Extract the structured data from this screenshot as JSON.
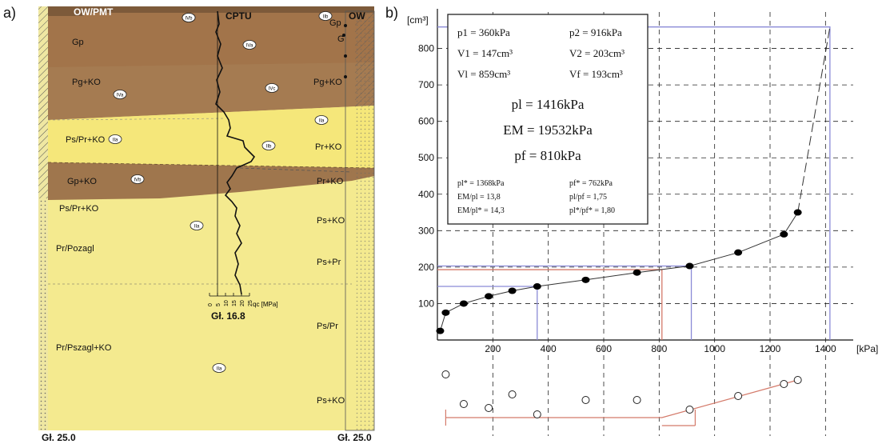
{
  "panel_a": {
    "label": "a)",
    "header_left": "OW/PMT",
    "header_cptu": "CPTU",
    "header_right": "OW",
    "left_layers": [
      {
        "label": "Gp",
        "color": "#a2744a"
      },
      {
        "label": "Pg+KO",
        "color": "#a57b51"
      },
      {
        "label": "Ps/Pr+KO",
        "color": "#f5e77a"
      },
      {
        "label": "Gp+KO",
        "color": "#9f764d"
      },
      {
        "label": "Ps/Pr+KO",
        "color": "#f4e888"
      },
      {
        "label": "Pr/Pozagl",
        "color": "#f2e687"
      },
      {
        "label": "Pr/Pszagl+KO",
        "color": "#f4ea8f"
      }
    ],
    "right_labels": [
      "Gp",
      "G",
      "Pg+KO",
      "Pr+KO",
      "Pr+KO",
      "Ps+KO",
      "Ps+Pr",
      "Ps/Pr",
      "Ps+KO"
    ],
    "bubbles": [
      "IVb",
      "IVa",
      "IVa",
      "IVb",
      "IVc",
      "IIa",
      "IIa",
      "IIb",
      "IVb",
      "IIa",
      "IIb",
      "IIa"
    ],
    "cptu_scale_ticks": [
      "0",
      "5",
      "10",
      "15",
      "20",
      "25"
    ],
    "cptu_scale_unit": "qc [MPa]",
    "cptu_depth": "Gł. 16.8",
    "bottom_left": "Gł. 25.0",
    "bottom_right": "Gł. 25.0"
  },
  "panel_b": {
    "label": "b)"
  },
  "chart_data": [
    {
      "type": "line",
      "xlabel": "[kPa]",
      "ylabel": "[cm³]",
      "xlim": [
        0,
        1500
      ],
      "ylim": [
        0,
        900
      ],
      "x_ticks": [
        200,
        400,
        600,
        800,
        1000,
        1200,
        1400
      ],
      "y_ticks": [
        100,
        200,
        300,
        400,
        500,
        600,
        700,
        800
      ],
      "grid": true,
      "series": [
        {
          "marker": "filled",
          "x": [
            10,
            30,
            95,
            185,
            270,
            360,
            535,
            720,
            910,
            1085,
            1250,
            1300
          ],
          "y": [
            25,
            75,
            100,
            120,
            135,
            147,
            165,
            185,
            203,
            240,
            290,
            350
          ]
        }
      ],
      "extrapolation": {
        "x": [
          1300,
          1416
        ],
        "y": [
          350,
          859
        ]
      },
      "reference_lines": [
        {
          "color": "#8a8ad6",
          "x": 360,
          "y": 147
        },
        {
          "color": "#8a8ad6",
          "x": 916,
          "y": 203
        },
        {
          "color": "#d47a6a",
          "x": 810,
          "y": 193
        },
        {
          "color": "#8a8ad6",
          "x": 1416,
          "y": 859
        }
      ],
      "legend_box": {
        "rows": [
          [
            "p1 = 360kPa",
            "p2 = 916kPa"
          ],
          [
            "V1 = 147cm³",
            "V2 = 203cm³"
          ],
          [
            "Vl = 859cm³",
            "Vf = 193cm³"
          ]
        ],
        "main": [
          "pl = 1416kPa",
          "EM = 19532kPa",
          "pf = 810kPa"
        ],
        "small_rows": [
          [
            "pl* = 1368kPa",
            "pf* = 762kPa"
          ],
          [
            "EM/pl = 13,8",
            "pl/pf = 1,75"
          ],
          [
            "EM/pl* = 14,3",
            "pl*/pf* = 1,80"
          ]
        ]
      }
    },
    {
      "type": "scatter",
      "description_none": "",
      "xlim": [
        0,
        1500
      ],
      "series": [
        {
          "marker": "open",
          "x": [
            30,
            95,
            185,
            270,
            360,
            535,
            720,
            910,
            1085,
            1250,
            1300
          ],
          "y_rel": [
            0.72,
            0.35,
            0.3,
            0.47,
            0.22,
            0.4,
            0.4,
            0.28,
            0.45,
            0.6,
            0.65
          ]
        }
      ],
      "fit_line": {
        "color": "#d47a6a",
        "x": [
          810,
          1300
        ]
      }
    }
  ]
}
